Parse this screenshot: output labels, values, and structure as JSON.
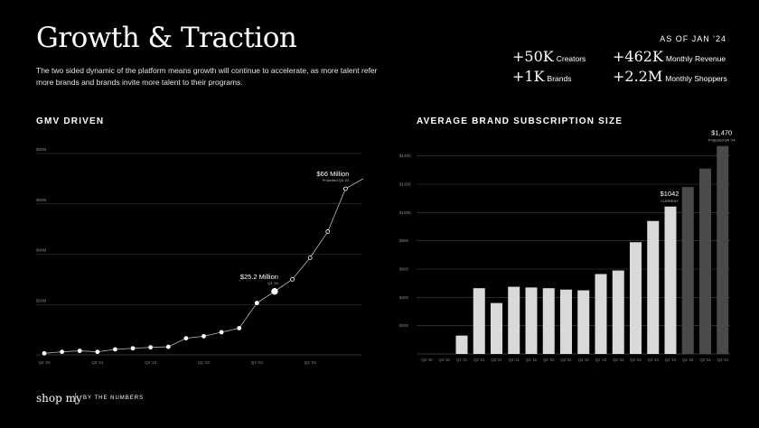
{
  "header": {
    "title": "Growth & Traction",
    "subtitle": "The two sided dynamic of the platform means growth will continue to accelerate, as more talent refer more brands and brands invite more talent to their programs.",
    "as_of": "AS OF JAN '24"
  },
  "stats": [
    {
      "value": "+50K",
      "label": "Creators"
    },
    {
      "value": "+462K",
      "label": "Monthly Revenue"
    },
    {
      "value": "+1K",
      "label": "Brands"
    },
    {
      "value": "+2.2M",
      "label": "Monthly Shoppers"
    }
  ],
  "footer": {
    "brand": "shop my",
    "tagline": "BY THE NUMBERS"
  },
  "chart_data": [
    {
      "type": "line",
      "title": "GMV DRIVEN",
      "y_ticks": [
        "$20M",
        "$40M",
        "$60M",
        "$80M"
      ],
      "y_tick_values": [
        20,
        40,
        60,
        80
      ],
      "ylim": [
        0,
        80
      ],
      "x_ticks": [
        "Q4 '20",
        "Q2 '21",
        "Q2 '22",
        "Q1 '23",
        "Q4 '23",
        "Q3 '24"
      ],
      "x_tick_index": [
        0,
        3,
        6,
        9,
        12,
        15
      ],
      "values": [
        0.6,
        1.2,
        1.6,
        1.2,
        2.2,
        2.6,
        3.0,
        3.2,
        6.6,
        7.4,
        9.0,
        10.6,
        20.6,
        25.2,
        30.0,
        38.6,
        49.0,
        66.0,
        70.0
      ],
      "highlight_index": [
        13,
        17
      ],
      "grid": true,
      "annotations": [
        {
          "index": 13,
          "label": "$25.2 Million",
          "sublabel": "Q1 '24"
        },
        {
          "index": 17,
          "label": "$66 Million",
          "sublabel": "Projected Q4 '24"
        }
      ]
    },
    {
      "type": "bar",
      "title": "AVERAGE BRAND SUBSCRIPTION SIZE",
      "categories": [
        "Q3 '20",
        "Q4 '20",
        "Q1 '21",
        "Q2 '21",
        "Q3 '21",
        "Q4 '21",
        "Q1 '22",
        "Q2 '22",
        "Q3 '22",
        "Q4 '22",
        "Q1 '23",
        "Q2 '23",
        "Q3 '23",
        "Q4 '23",
        "Q1 '24",
        "Q2 '24",
        "Q3 '24",
        "Q4 '24"
      ],
      "values": [
        0,
        0,
        130,
        465,
        360,
        475,
        470,
        465,
        455,
        450,
        565,
        590,
        790,
        940,
        1042,
        1180,
        1310,
        1470
      ],
      "colors": [
        "#d9d9d9",
        "#d9d9d9",
        "#d9d9d9",
        "#d9d9d9",
        "#d9d9d9",
        "#d9d9d9",
        "#d9d9d9",
        "#d9d9d9",
        "#d9d9d9",
        "#d9d9d9",
        "#d9d9d9",
        "#d9d9d9",
        "#d9d9d9",
        "#d9d9d9",
        "#d9d9d9",
        "#4a4a4a",
        "#4a4a4a",
        "#4a4a4a"
      ],
      "y_ticks": [
        "$200",
        "$400",
        "$600",
        "$800",
        "$1000",
        "$1200",
        "$1400"
      ],
      "y_tick_values": [
        200,
        400,
        600,
        800,
        1000,
        1200,
        1400
      ],
      "ylim": [
        0,
        1500
      ],
      "grid": true,
      "annotations": [
        {
          "index": 14,
          "label": "$1042",
          "sublabel": "CURRENT"
        },
        {
          "index": 17,
          "label": "$1,470",
          "sublabel": "Projected Q4 '24"
        }
      ]
    }
  ]
}
